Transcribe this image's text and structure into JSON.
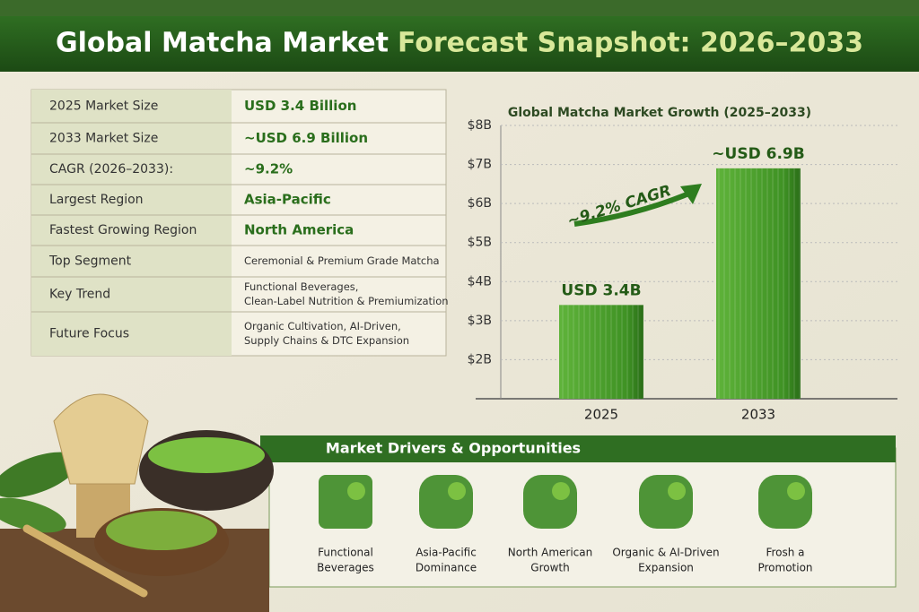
{
  "title": {
    "main": "Global Matcha Market",
    "accent": "Forecast Snapshot: 2026–2033"
  },
  "table": {
    "rows": [
      [
        "2025 Market Size",
        [
          "USD 3.4 Billion"
        ]
      ],
      [
        "2033 Market Size",
        [
          "~USD 6.9 Billion"
        ]
      ],
      [
        "CAGR (2026–2033):",
        [
          "~9.2%"
        ]
      ],
      [
        "Largest Region",
        [
          "Asia-Pacific"
        ]
      ],
      [
        "Fastest Growing Region",
        [
          "North America"
        ]
      ],
      [
        "Top Segment",
        [
          "Ceremonial & Premium Grade Matcha"
        ]
      ],
      [
        "Key Trend",
        [
          "Functional Beverages,",
          "Clean-Label Nutrition & Premiumization"
        ]
      ],
      [
        "Future Focus",
        [
          "Organic Cultivation, AI-Driven,",
          "Supply Chains & DTC Expansion"
        ]
      ]
    ]
  },
  "chart_data": {
    "type": "bar",
    "title": "Global Matcha Market Growth (2025–2033)",
    "categories": [
      "2025",
      "2033"
    ],
    "values": [
      3.4,
      6.9
    ],
    "value_labels": [
      "USD 3.4B",
      "~USD 6.9B"
    ],
    "color": "#4a9e2c",
    "ylim": [
      1,
      8
    ],
    "yticks": [
      {
        "value": 2,
        "label": "$2B"
      },
      {
        "value": 3,
        "label": "$3B"
      },
      {
        "value": 4,
        "label": "$4B"
      },
      {
        "value": 5,
        "label": "$5B"
      },
      {
        "value": 6,
        "label": "$6B"
      },
      {
        "value": 7,
        "label": "$7B"
      },
      {
        "value": 8,
        "label": "$8B"
      }
    ],
    "grid": true,
    "annotation": "~9.2% CAGR"
  },
  "drivers": {
    "title": "Market Drivers & Opportunities",
    "items": [
      [
        "Functional",
        "Beverages"
      ],
      [
        "Asia-Pacific",
        "Dominance"
      ],
      [
        "North American",
        "Growth"
      ],
      [
        "Organic & AI-Driven",
        "Expansion"
      ],
      [
        "Frosh a",
        "Promotion"
      ]
    ]
  }
}
